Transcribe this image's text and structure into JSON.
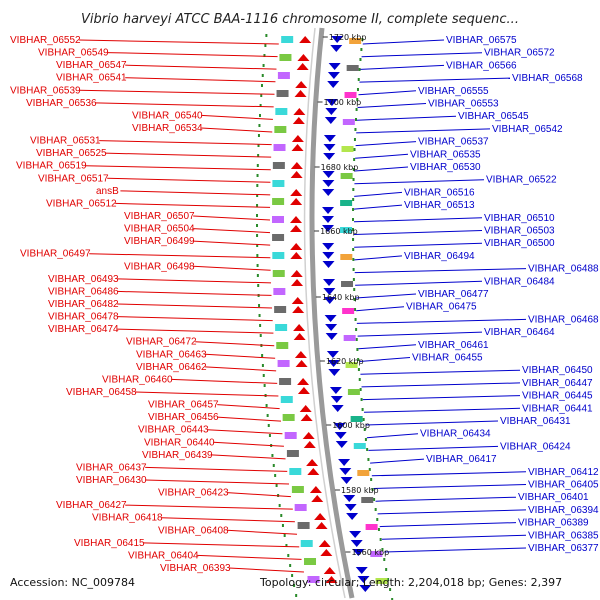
{
  "title": "Vibrio harveyi ATCC BAA-1116 chromosome II, complete sequenc...",
  "footer": {
    "accession": "Accession: NC_009784",
    "summary": "Topology: circular; Length: 2,204,018 bp; Genes: 2,397"
  },
  "colors": {
    "forward_strand": "#e00000",
    "reverse_strand": "#0000cc",
    "backbone": "#888888",
    "tick": "#2a8a2a"
  },
  "kbp_ticks": [
    "1720 kbp",
    "1700 kbp",
    "1680 kbp",
    "1660 kbp",
    "1640 kbp",
    "1620 kbp",
    "1600 kbp",
    "1580 kbp",
    "1560 kbp"
  ],
  "forward_genes": [
    "VIBHAR_06552",
    "VIBHAR_06549",
    "VIBHAR_06547",
    "VIBHAR_06541",
    "VIBHAR_06539",
    "VIBHAR_06536",
    "VIBHAR_06540",
    "VIBHAR_06534",
    "VIBHAR_06531",
    "VIBHAR_06525",
    "VIBHAR_06519",
    "VIBHAR_06517",
    "ansB",
    "VIBHAR_06512",
    "VIBHAR_06507",
    "VIBHAR_06504",
    "VIBHAR_06499",
    "VIBHAR_06497",
    "VIBHAR_06498",
    "VIBHAR_06493",
    "VIBHAR_06486",
    "VIBHAR_06482",
    "VIBHAR_06478",
    "VIBHAR_06474",
    "VIBHAR_06472",
    "VIBHAR_06463",
    "VIBHAR_06462",
    "VIBHAR_06460",
    "VIBHAR_06458",
    "VIBHAR_06457",
    "VIBHAR_06456",
    "VIBHAR_06443",
    "VIBHAR_06440",
    "VIBHAR_06439",
    "VIBHAR_06437",
    "VIBHAR_06430",
    "VIBHAR_06423",
    "VIBHAR_06427",
    "VIBHAR_06418",
    "VIBHAR_06408",
    "VIBHAR_06415",
    "VIBHAR_06404",
    "VIBHAR_06393"
  ],
  "reverse_genes": [
    "VIBHAR_06575",
    "VIBHAR_06572",
    "VIBHAR_06566",
    "VIBHAR_06568",
    "VIBHAR_06555",
    "VIBHAR_06553",
    "VIBHAR_06545",
    "VIBHAR_06542",
    "VIBHAR_06537",
    "VIBHAR_06535",
    "VIBHAR_06530",
    "VIBHAR_06522",
    "VIBHAR_06516",
    "VIBHAR_06513",
    "VIBHAR_06510",
    "VIBHAR_06503",
    "VIBHAR_06500",
    "VIBHAR_06494",
    "VIBHAR_06488",
    "VIBHAR_06484",
    "VIBHAR_06477",
    "VIBHAR_06475",
    "VIBHAR_06468",
    "VIBHAR_06464",
    "VIBHAR_06461",
    "VIBHAR_06455",
    "VIBHAR_06450",
    "VIBHAR_06447",
    "VIBHAR_06445",
    "VIBHAR_06441",
    "VIBHAR_06431",
    "VIBHAR_06434",
    "VIBHAR_06424",
    "VIBHAR_06417",
    "VIBHAR_06412",
    "VIBHAR_06405",
    "VIBHAR_06401",
    "VIBHAR_06394",
    "VIBHAR_06389",
    "VIBHAR_06385",
    "VIBHAR_06377"
  ]
}
